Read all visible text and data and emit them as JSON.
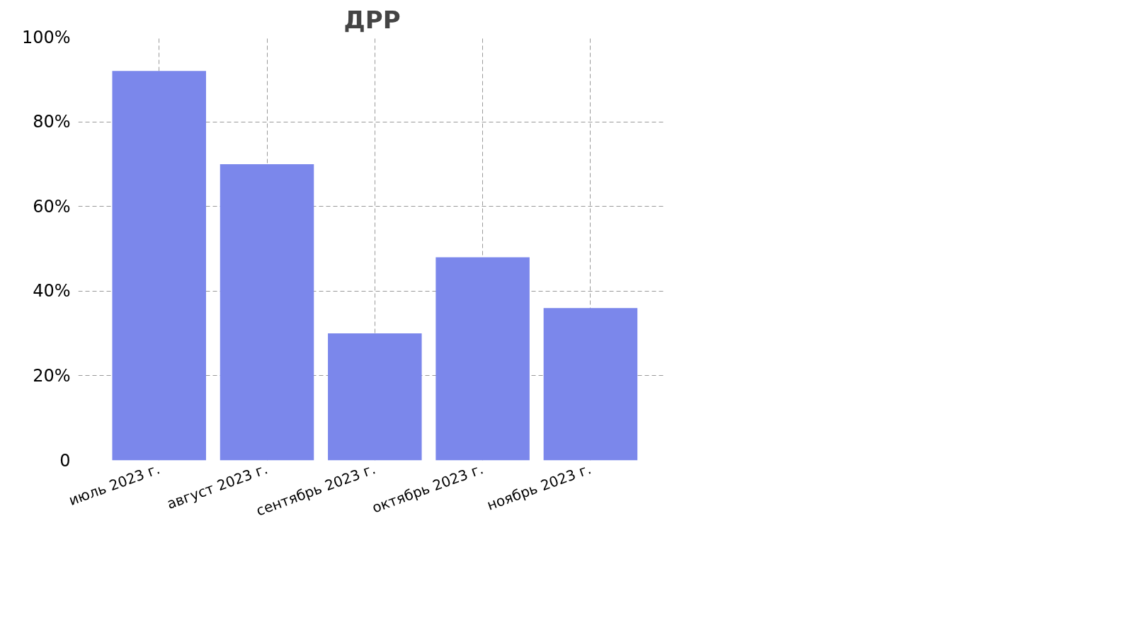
{
  "chart_data": {
    "type": "bar",
    "title": "ДРР",
    "categories": [
      "июль 2023 г.",
      "август 2023 г.",
      "сентябрь 2023 г.",
      "октябрь 2023 г.",
      "ноябрь 2023 г."
    ],
    "values": [
      92,
      70,
      30,
      48,
      36
    ],
    "color": "#7b87eb",
    "ylim": [
      0,
      100
    ],
    "yticks": [
      0,
      {
        "value": 20,
        "label": "20%"
      },
      {
        "value": 40,
        "label": "40%"
      },
      {
        "value": 60,
        "label": "60%"
      },
      {
        "value": 80,
        "label": "80%"
      },
      {
        "value": 100,
        "label": "100%"
      }
    ],
    "grid": true,
    "line_style": "dashed"
  }
}
